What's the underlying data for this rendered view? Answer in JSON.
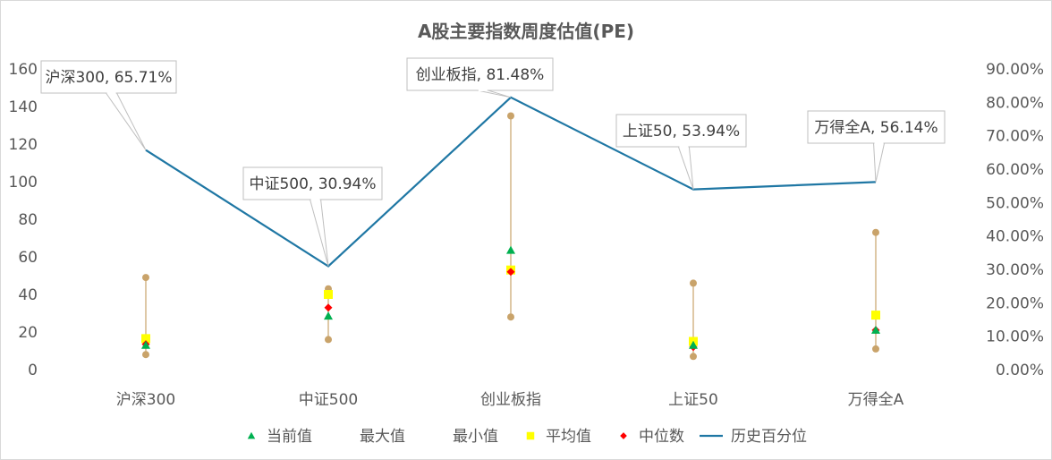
{
  "chart_data": {
    "type": "line",
    "title": "A股主要指数周度估值(PE)",
    "categories": [
      "沪深300",
      "中证500",
      "创业板指",
      "上证50",
      "万得全A"
    ],
    "y_left": {
      "min": 0,
      "max": 160,
      "step": 20,
      "ticks": [
        "0",
        "20",
        "40",
        "60",
        "80",
        "100",
        "120",
        "140",
        "160"
      ]
    },
    "y_right": {
      "min": 0,
      "max": 0.9,
      "step": 0.1,
      "ticks": [
        "0.00%",
        "10.00%",
        "20.00%",
        "30.00%",
        "40.00%",
        "50.00%",
        "60.00%",
        "70.00%",
        "80.00%",
        "90.00%"
      ]
    },
    "series": [
      {
        "name": "当前值",
        "axis": "left",
        "marker": "triangle",
        "color": "#00b050",
        "values": [
          13,
          28.5,
          63.5,
          13,
          21
        ]
      },
      {
        "name": "最大值",
        "axis": "left",
        "marker": "circle",
        "color": "#c9a36a",
        "values": [
          49,
          43,
          135,
          46,
          73
        ]
      },
      {
        "name": "最小值",
        "axis": "left",
        "marker": "circle",
        "color": "#c9a36a",
        "values": [
          8,
          16,
          28,
          7,
          11
        ]
      },
      {
        "name": "平均值",
        "axis": "left",
        "marker": "square",
        "color": "#ffff00",
        "values": [
          16.5,
          40,
          53,
          15,
          29
        ]
      },
      {
        "name": "中位数",
        "axis": "left",
        "marker": "diamond",
        "color": "#ff0000",
        "values": [
          13.5,
          33,
          52,
          12,
          21
        ]
      },
      {
        "name": "历史百分位",
        "axis": "right",
        "marker": "line",
        "color": "#1f77a4",
        "values": [
          0.6571,
          0.3094,
          0.8148,
          0.5394,
          0.5614
        ]
      }
    ],
    "callouts": [
      "沪深300, 65.71%",
      "中证500, 30.94%",
      "创业板指, 81.48%",
      "上证50, 53.94%",
      "万得全A, 56.14%"
    ],
    "legend_position": "bottom"
  }
}
